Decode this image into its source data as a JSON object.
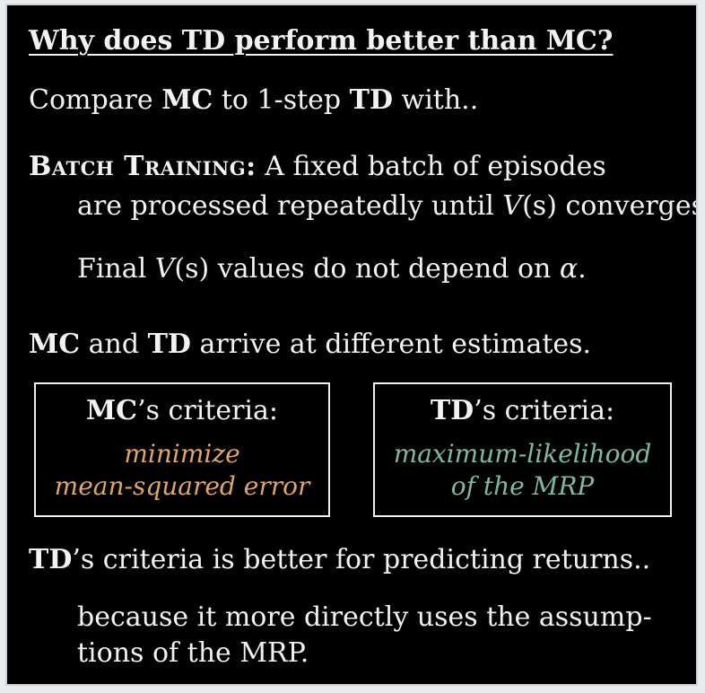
{
  "slide": {
    "title": "Why does TD perform better than MC?",
    "compare": {
      "pre": "Compare ",
      "mc": "MC",
      "mid": " to 1-step ",
      "td": "TD",
      "post": " with.."
    },
    "batch": {
      "label": "Batch Training:",
      "line1_rest": " A fixed batch of episodes",
      "line2_pre": "are processed repeatedly until ",
      "v": "V",
      "s": "(s)",
      "line2_post": " converges."
    },
    "final": {
      "pre": "Final ",
      "v": "V",
      "s": "(s)",
      "mid": " values do not depend on ",
      "alpha": "α",
      "post": "."
    },
    "estimates": {
      "mc": "MC",
      "and": " and ",
      "td": "TD",
      "post": " arrive at different estimates."
    },
    "mc_box": {
      "head_bold": "MC",
      "head_rest": "’s criteria:",
      "line1": "minimize",
      "line2": "mean-squared error"
    },
    "td_box": {
      "head_bold": "TD",
      "head_rest": "’s criteria:",
      "line1": "maximum-likelihood",
      "line2": "of the MRP"
    },
    "conclusion": {
      "td": "TD",
      "rest": "’s criteria is better for predicting returns.."
    },
    "because": {
      "line1": "because it more directly uses the assump-",
      "line2": "tions of the MRP."
    }
  },
  "colors": {
    "mc_criteria": "#e0a56b",
    "td_criteria": "#7fb8a8",
    "background": "#000000"
  }
}
